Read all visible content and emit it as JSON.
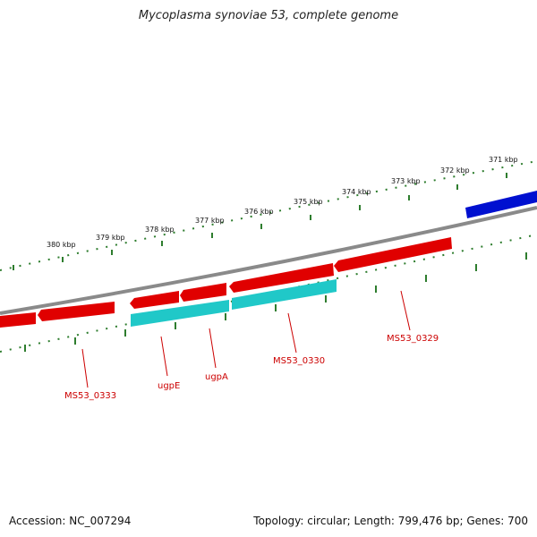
{
  "title": "Mycoplasma synoviae 53, complete genome",
  "footer": {
    "accession": "Accession: NC_007294",
    "summary": "Topology: circular; Length: 799,476 bp; Genes: 700"
  },
  "ticks": [
    "371 kbp",
    "372 kbp",
    "373 kbp",
    "374 kbp",
    "375 kbp",
    "376 kbp",
    "377 kbp",
    "378 kbp",
    "379 kbp",
    "380 kbp"
  ],
  "genes": [
    "MS53_0329",
    "MS53_0330",
    "ugpA",
    "ugpE",
    "MS53_0333"
  ],
  "colors": {
    "forward_gene": "#e00000",
    "cds_feature": "#20c8c8",
    "other_strand_gene": "#0010d0",
    "backbone": "#888888",
    "ruler_ticks": "#2e7d2e",
    "label": "#cc0000"
  }
}
